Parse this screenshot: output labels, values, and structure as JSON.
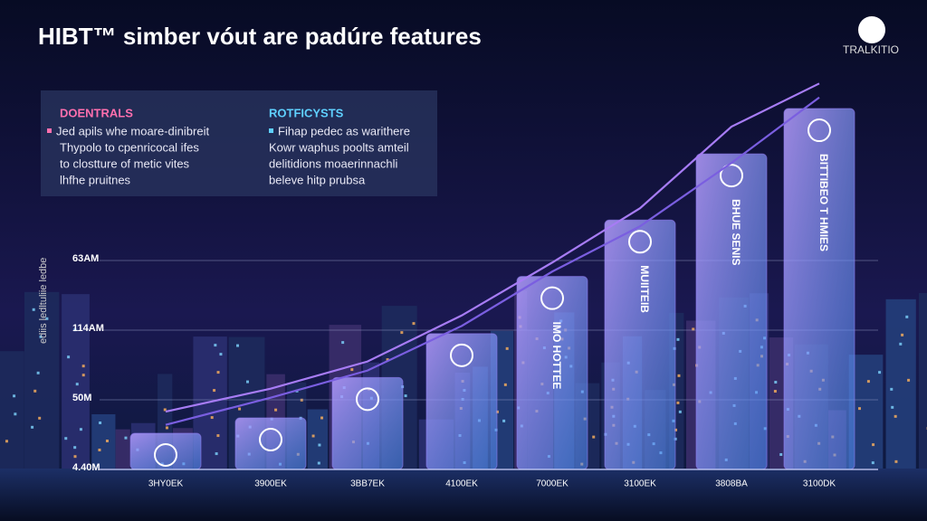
{
  "chart_data": {
    "type": "bar",
    "title": "HIBT™ simber vóut are padúre features",
    "logo": "TRALKITIO",
    "panel": {
      "left": {
        "heading": "DOENTRALS",
        "lines": [
          "Jed apils whe moare-dinibreit",
          "Thypolo to cpenricocal ifes",
          "to clostture of metic vites",
          "lhfhe pruitnes"
        ]
      },
      "right": {
        "heading": "ROTFICYSTS",
        "lines": [
          "Fihap pedec as warithere",
          "Kowr waphus poolts amteil",
          "delitidions moaerinnachli",
          "beleve hitp prubsa"
        ]
      }
    },
    "axis_label": "ediis ledltuliie ledbe",
    "categories": [
      "3HY0EK",
      "3900EK",
      "3BB7EK",
      "4100EK",
      "7000EK",
      "3100EK",
      "3808BA",
      "3100DK"
    ],
    "values": [
      0.52,
      0.74,
      1.32,
      1.95,
      2.77,
      3.58,
      4.53,
      5.18
    ],
    "bar_labels": [
      null,
      null,
      null,
      null,
      "IMO HOTTEE",
      "MUIITEIB",
      "BHUE SENIS",
      "BITTIBEO T HMIES"
    ],
    "color": "#8f7cf0",
    "lines": [
      {
        "color": "#a77cf5",
        "values": [
          0.83,
          1.16,
          1.55,
          2.21,
          2.97,
          3.75,
          4.92,
          5.54
        ]
      },
      {
        "color": "#7a5ee0",
        "values": [
          0.64,
          1.03,
          1.42,
          2.06,
          2.84,
          3.49,
          4.4,
          5.34
        ]
      }
    ],
    "ylim": [
      0,
      5.7
    ],
    "yticks": [
      {
        "value": 0,
        "label": "4.40M"
      },
      {
        "value": 1,
        "label": "50M"
      },
      {
        "value": 2,
        "label": "114AM"
      },
      {
        "value": 3,
        "label": "63AM"
      }
    ],
    "grid": true
  }
}
